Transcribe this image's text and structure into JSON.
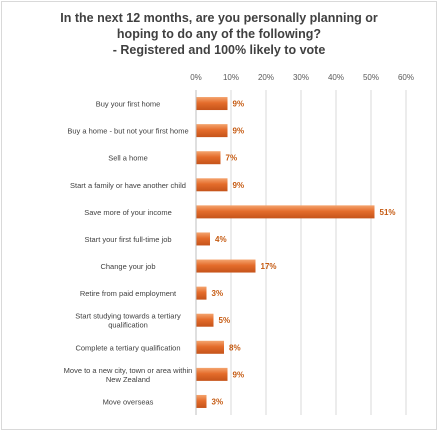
{
  "chart_data": {
    "type": "bar",
    "orientation": "horizontal",
    "title_lines": [
      "In the next 12 months, are you personally planning or",
      "hoping to do any of the following?",
      "- Registered and 100% likely to vote"
    ],
    "xlim": [
      0,
      60
    ],
    "x_ticks": [
      "0%",
      "10%",
      "20%",
      "30%",
      "40%",
      "50%",
      "60%"
    ],
    "tick_values": [
      0,
      10,
      20,
      30,
      40,
      50,
      60
    ],
    "grid": true,
    "legend": "none",
    "bar_color": "#e46c2b",
    "categories": [
      [
        "Buy your first home"
      ],
      [
        "Buy a home - but not your first home"
      ],
      [
        "Sell a home"
      ],
      [
        "Start a family or have another child"
      ],
      [
        "Save more of your income"
      ],
      [
        "Start your first full-time job"
      ],
      [
        "Change your job"
      ],
      [
        "Retire from paid employment"
      ],
      [
        "Start studying towards a tertiary",
        "qualification"
      ],
      [
        "Complete a tertiary qualification"
      ],
      [
        "Move to a new city, town or area within",
        "New Zealand"
      ],
      [
        "Move overseas"
      ]
    ],
    "values": [
      9,
      9,
      7,
      9,
      51,
      4,
      17,
      3,
      5,
      8,
      9,
      3
    ],
    "value_labels": [
      "9%",
      "9%",
      "7%",
      "9%",
      "51%",
      "4%",
      "17%",
      "3%",
      "5%",
      "8%",
      "9%",
      "3%"
    ]
  }
}
